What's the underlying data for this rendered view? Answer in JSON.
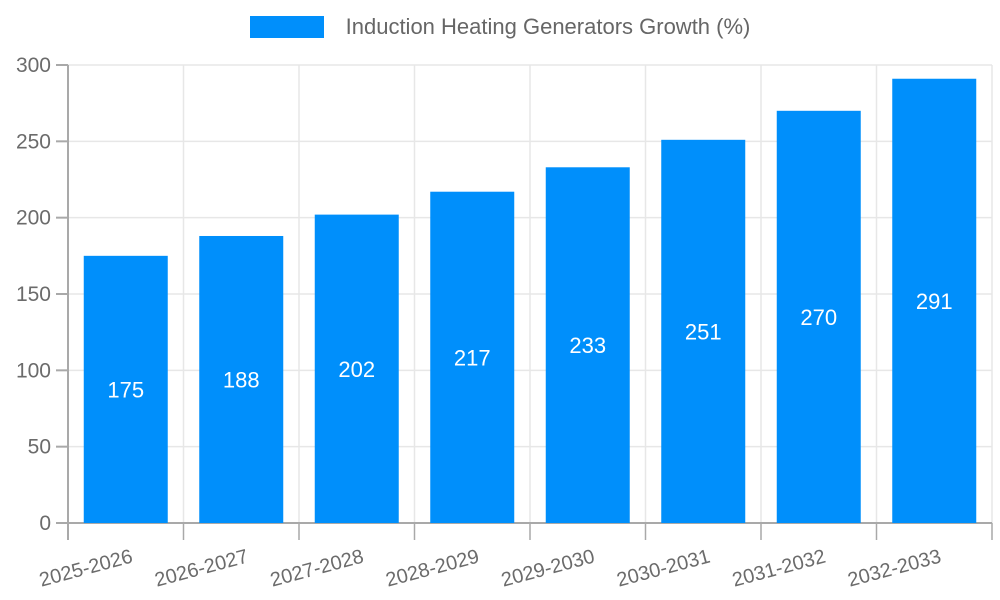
{
  "legend": {
    "label": "Induction Heating Generators Growth (%)"
  },
  "colors": {
    "bar": "#008FFB",
    "grid": "#e7e7e7",
    "axis": "#a9a9a9",
    "tick_label": "#6b6b6b",
    "legend_text": "#666666",
    "data_label": "#ffffff",
    "background": "#ffffff"
  },
  "chart_data": {
    "type": "bar",
    "title": "Induction Heating Generators Growth (%)",
    "categories": [
      "2025-2026",
      "2026-2027",
      "2027-2028",
      "2028-2029",
      "2029-2030",
      "2030-2031",
      "2031-2032",
      "2032-2033"
    ],
    "series": [
      {
        "name": "Induction Heating Generators Growth (%)",
        "values": [
          175,
          188,
          202,
          217,
          233,
          251,
          270,
          291
        ]
      }
    ],
    "values": [
      175,
      188,
      202,
      217,
      233,
      251,
      270,
      291
    ],
    "data_labels": [
      175,
      188,
      202,
      217,
      233,
      251,
      270,
      291
    ],
    "xlabel": "",
    "ylabel": "",
    "ylim": [
      0,
      300
    ],
    "yticks": [
      0,
      50,
      100,
      150,
      200,
      250,
      300
    ],
    "grid": true,
    "legend_position": "top",
    "bar_color": "#008FFB"
  }
}
